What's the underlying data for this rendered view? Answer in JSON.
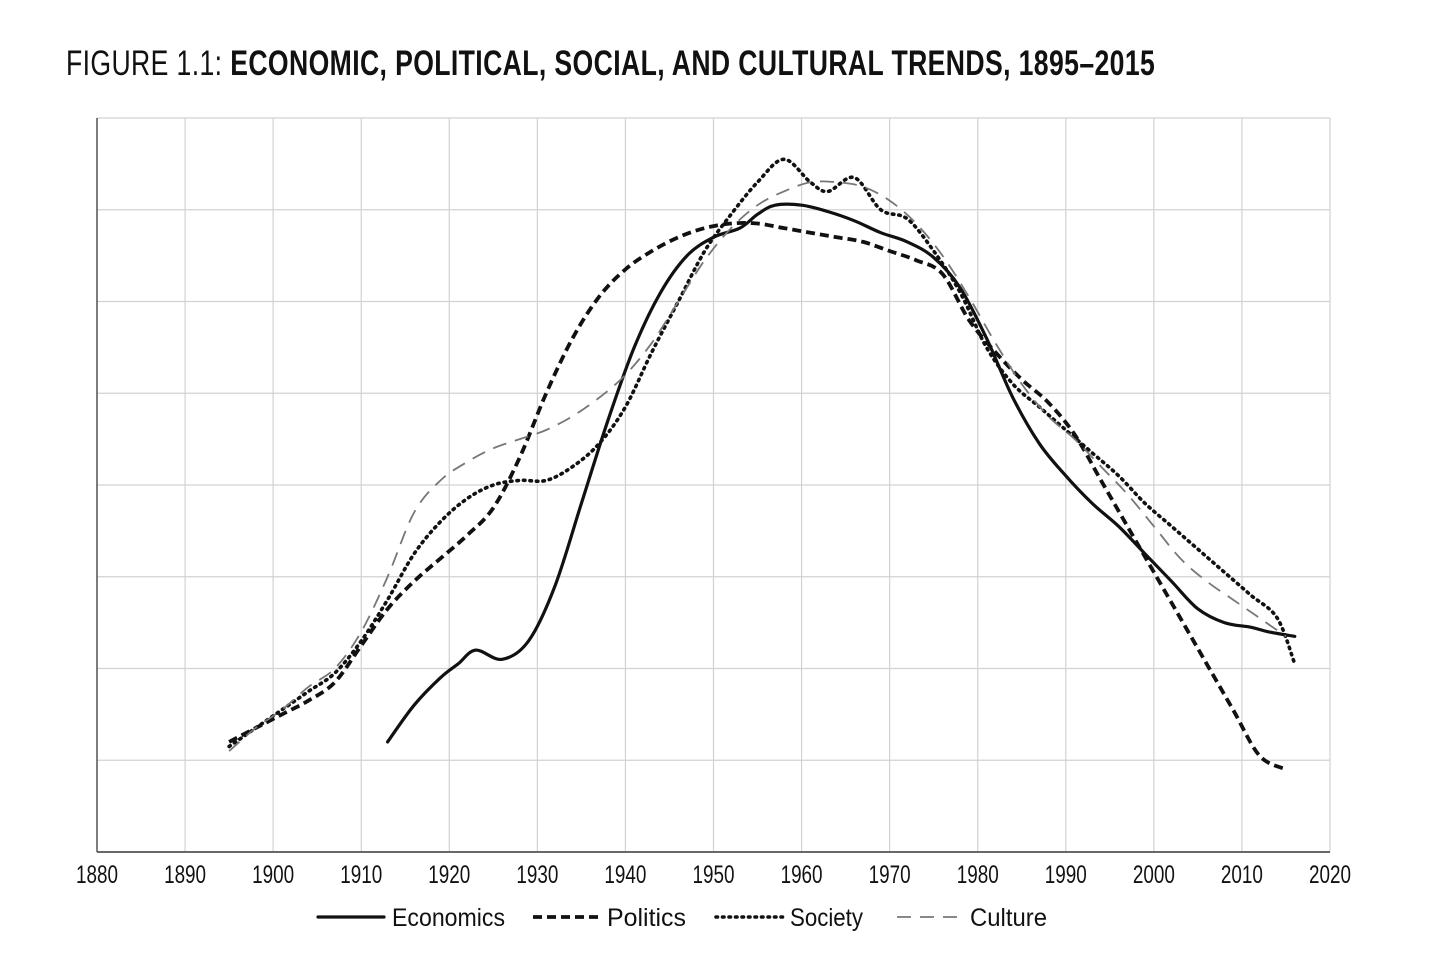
{
  "figure": {
    "title_lead": "FIGURE 1.1: ",
    "title_main": "ECONOMIC, POLITICAL, SOCIAL, AND CULTURAL TRENDS, 1895–2015"
  },
  "chart_data": {
    "type": "line",
    "title": "FIGURE 1.1: ECONOMIC, POLITICAL, SOCIAL, AND CULTURAL TRENDS, 1895–2015",
    "xlabel": "",
    "ylabel": "",
    "xlim": [
      1880,
      2020
    ],
    "ylim": [
      0,
      8
    ],
    "xticks": [
      1880,
      1890,
      1900,
      1910,
      1920,
      1930,
      1940,
      1950,
      1960,
      1970,
      1980,
      1990,
      2000,
      2010,
      2020
    ],
    "grid": true,
    "legend_position": "bottom",
    "series": [
      {
        "name": "Economics",
        "style": "solid",
        "color": "#111111",
        "x": [
          1913,
          1916,
          1919,
          1921,
          1923,
          1926,
          1929,
          1932,
          1935,
          1938,
          1941,
          1944,
          1947,
          1950,
          1953,
          1955,
          1957,
          1960,
          1963,
          1966,
          1969,
          1972,
          1975,
          1978,
          1981,
          1984,
          1987,
          1990,
          1993,
          1996,
          1999,
          2002,
          2005,
          2008,
          2011,
          2013,
          2016
        ],
        "y": [
          1.2,
          1.6,
          1.9,
          2.05,
          2.2,
          2.1,
          2.3,
          2.9,
          3.8,
          4.7,
          5.5,
          6.1,
          6.5,
          6.7,
          6.8,
          6.95,
          7.05,
          7.05,
          6.98,
          6.88,
          6.75,
          6.65,
          6.48,
          6.15,
          5.6,
          4.95,
          4.45,
          4.1,
          3.8,
          3.55,
          3.25,
          2.95,
          2.65,
          2.5,
          2.45,
          2.4,
          2.35
        ]
      },
      {
        "name": "Politics",
        "style": "dashed",
        "color": "#111111",
        "x": [
          1895,
          1898,
          1901,
          1904,
          1907,
          1910,
          1913,
          1916,
          1919,
          1922,
          1925,
          1928,
          1931,
          1934,
          1937,
          1940,
          1943,
          1946,
          1949,
          1952,
          1955,
          1958,
          1961,
          1964,
          1967,
          1970,
          1973,
          1976,
          1979,
          1982,
          1985,
          1988,
          1991,
          1994,
          1997,
          2000,
          2003,
          2006,
          2009,
          2012,
          2015
        ],
        "y": [
          1.2,
          1.35,
          1.5,
          1.65,
          1.85,
          2.25,
          2.65,
          2.95,
          3.2,
          3.45,
          3.75,
          4.3,
          5.0,
          5.6,
          6.05,
          6.35,
          6.55,
          6.7,
          6.8,
          6.85,
          6.85,
          6.8,
          6.75,
          6.7,
          6.65,
          6.55,
          6.45,
          6.3,
          5.8,
          5.45,
          5.15,
          4.9,
          4.55,
          4.05,
          3.55,
          3.05,
          2.55,
          2.05,
          1.55,
          1.05,
          0.9
        ]
      },
      {
        "name": "Society",
        "style": "dotted",
        "color": "#111111",
        "x": [
          1895,
          1898,
          1901,
          1904,
          1907,
          1910,
          1913,
          1916,
          1919,
          1922,
          1925,
          1928,
          1931,
          1934,
          1937,
          1940,
          1943,
          1946,
          1949,
          1952,
          1955,
          1958,
          1961,
          1963,
          1966,
          1969,
          1972,
          1975,
          1978,
          1981,
          1984,
          1987,
          1990,
          1993,
          1996,
          1999,
          2002,
          2005,
          2008,
          2011,
          2014,
          2016
        ],
        "y": [
          1.15,
          1.35,
          1.55,
          1.75,
          1.95,
          2.3,
          2.75,
          3.25,
          3.6,
          3.85,
          4.0,
          4.05,
          4.05,
          4.2,
          4.45,
          4.85,
          5.45,
          6.0,
          6.55,
          6.95,
          7.3,
          7.55,
          7.3,
          7.2,
          7.35,
          7.0,
          6.9,
          6.55,
          6.1,
          5.5,
          5.1,
          4.85,
          4.6,
          4.35,
          4.1,
          3.8,
          3.55,
          3.3,
          3.05,
          2.8,
          2.55,
          2.05
        ]
      },
      {
        "name": "Culture",
        "style": "long-dash",
        "color": "#777777",
        "x": [
          1895,
          1898,
          1901,
          1904,
          1907,
          1910,
          1913,
          1916,
          1919,
          1922,
          1925,
          1928,
          1931,
          1934,
          1937,
          1940,
          1943,
          1946,
          1949,
          1952,
          1955,
          1958,
          1961,
          1964,
          1967,
          1970,
          1973,
          1976,
          1979,
          1982,
          1985,
          1988,
          1991,
          1994,
          1997,
          2000,
          2003,
          2006,
          2009,
          2012,
          2015
        ],
        "y": [
          1.1,
          1.35,
          1.55,
          1.8,
          2.0,
          2.4,
          3.0,
          3.7,
          4.05,
          4.25,
          4.4,
          4.5,
          4.6,
          4.75,
          4.95,
          5.2,
          5.55,
          6.0,
          6.45,
          6.8,
          7.05,
          7.2,
          7.3,
          7.3,
          7.25,
          7.1,
          6.85,
          6.5,
          6.05,
          5.55,
          5.1,
          4.75,
          4.5,
          4.2,
          3.9,
          3.55,
          3.2,
          2.95,
          2.75,
          2.55,
          2.35
        ]
      }
    ]
  }
}
